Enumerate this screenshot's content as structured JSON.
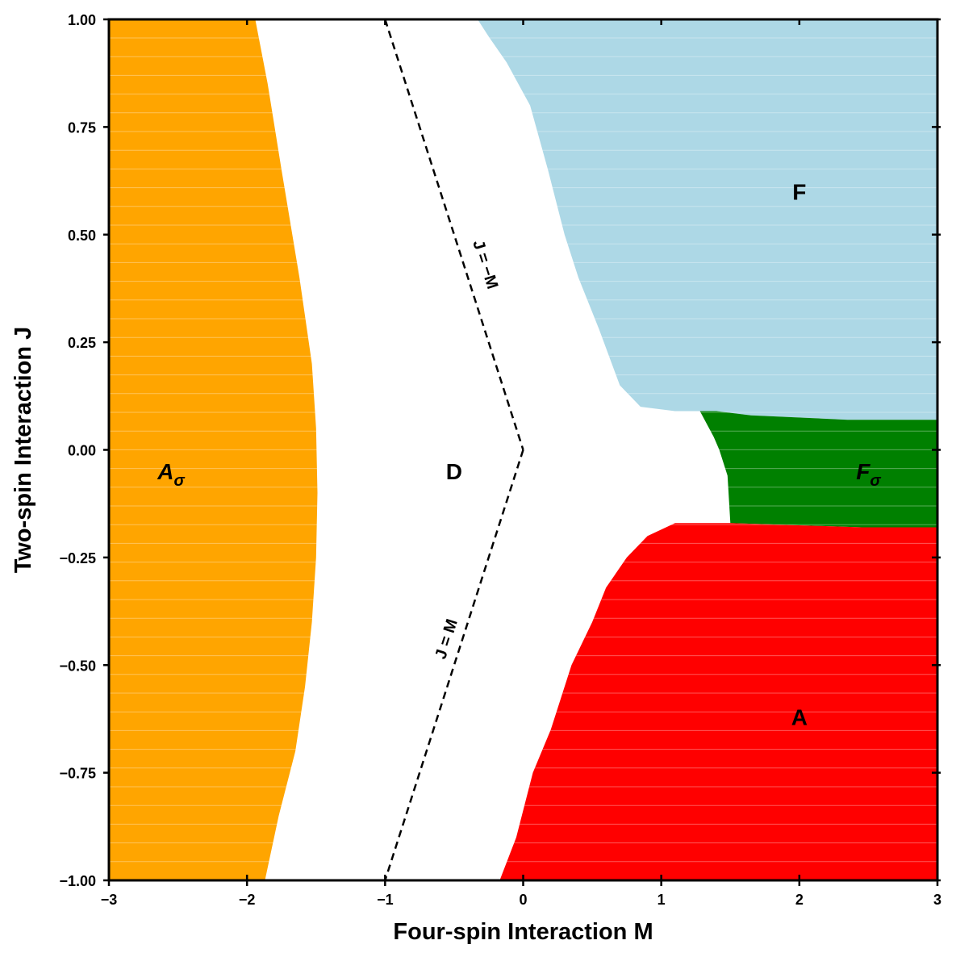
{
  "chart_data": {
    "type": "heatmap",
    "title": "",
    "xlabel": "Four-spin Interaction M",
    "ylabel": "Two-spin Interaction J",
    "xlim": [
      -3,
      3
    ],
    "ylim": [
      -1,
      1
    ],
    "x_ticks": [
      {
        "value": -3,
        "label": "−3"
      },
      {
        "value": -2,
        "label": "−2"
      },
      {
        "value": -1,
        "label": "−1"
      },
      {
        "value": 0,
        "label": "0"
      },
      {
        "value": 1,
        "label": "1"
      },
      {
        "value": 2,
        "label": "2"
      },
      {
        "value": 3,
        "label": "3"
      }
    ],
    "y_ticks": [
      {
        "value": -1.0,
        "label": "−1.00"
      },
      {
        "value": -0.75,
        "label": "−0.75"
      },
      {
        "value": -0.5,
        "label": "−0.50"
      },
      {
        "value": -0.25,
        "label": "−0.25"
      },
      {
        "value": 0.0,
        "label": "0.00"
      },
      {
        "value": 0.25,
        "label": "0.25"
      },
      {
        "value": 0.5,
        "label": "0.50"
      },
      {
        "value": 0.75,
        "label": "0.75"
      },
      {
        "value": 1.0,
        "label": "1.00"
      }
    ],
    "grid": false,
    "background_color": "#ffffff",
    "regions": [
      {
        "label": "A",
        "sub": "σ",
        "italic": true,
        "color": "#ffa500",
        "label_at": [
          -2.55,
          -0.05
        ],
        "polygon": [
          [
            -3,
            1
          ],
          [
            -1.94,
            1
          ],
          [
            -1.85,
            0.85
          ],
          [
            -1.75,
            0.65
          ],
          [
            -1.62,
            0.4
          ],
          [
            -1.53,
            0.2
          ],
          [
            -1.5,
            0.05
          ],
          [
            -1.49,
            -0.1
          ],
          [
            -1.5,
            -0.25
          ],
          [
            -1.53,
            -0.4
          ],
          [
            -1.58,
            -0.55
          ],
          [
            -1.65,
            -0.7
          ],
          [
            -1.77,
            -0.85
          ],
          [
            -1.87,
            -1
          ],
          [
            -3,
            -1
          ]
        ]
      },
      {
        "label": "F",
        "sub": "",
        "italic": false,
        "color": "#add8e6",
        "label_at": [
          2.0,
          0.6
        ],
        "polygon": [
          [
            -0.33,
            1
          ],
          [
            3,
            1
          ],
          [
            3,
            0.07
          ],
          [
            2.35,
            0.07
          ],
          [
            1.65,
            0.08
          ],
          [
            1.4,
            0.09
          ],
          [
            1.28,
            0.09
          ],
          [
            1.1,
            0.09
          ],
          [
            0.85,
            0.1
          ],
          [
            0.7,
            0.15
          ],
          [
            0.55,
            0.28
          ],
          [
            0.4,
            0.4
          ],
          [
            0.3,
            0.5
          ],
          [
            0.18,
            0.65
          ],
          [
            0.05,
            0.8
          ],
          [
            -0.12,
            0.9
          ],
          [
            -0.25,
            0.96
          ]
        ]
      },
      {
        "label": "F",
        "sub": "σ",
        "italic": true,
        "color": "#008000",
        "label_at": [
          2.5,
          -0.05
        ],
        "polygon": [
          [
            1.28,
            0.09
          ],
          [
            1.4,
            0.09
          ],
          [
            1.65,
            0.08
          ],
          [
            2.35,
            0.07
          ],
          [
            3,
            0.07
          ],
          [
            3,
            -0.18
          ],
          [
            2.45,
            -0.18
          ],
          [
            1.5,
            -0.17
          ],
          [
            1.48,
            -0.06
          ],
          [
            1.42,
            0.0
          ],
          [
            1.38,
            0.03
          ]
        ]
      },
      {
        "label": "A",
        "sub": "",
        "italic": false,
        "color": "#ff0000",
        "label_at": [
          2.0,
          -0.62
        ],
        "polygon": [
          [
            1.5,
            -0.17
          ],
          [
            2.45,
            -0.18
          ],
          [
            3,
            -0.18
          ],
          [
            3,
            -1
          ],
          [
            -0.17,
            -1
          ],
          [
            -0.05,
            -0.9
          ],
          [
            0.07,
            -0.75
          ],
          [
            0.2,
            -0.65
          ],
          [
            0.35,
            -0.5
          ],
          [
            0.5,
            -0.4
          ],
          [
            0.6,
            -0.32
          ],
          [
            0.75,
            -0.25
          ],
          [
            0.9,
            -0.2
          ],
          [
            1.1,
            -0.17
          ]
        ]
      },
      {
        "label": "D",
        "sub": "",
        "italic": false,
        "color": "#ffffff",
        "label_at": [
          -0.5,
          -0.05
        ],
        "polygon": []
      }
    ],
    "lines": [
      {
        "label": "J = −M",
        "style": "dashed",
        "points": [
          [
            -1,
            1
          ],
          [
            0,
            0
          ]
        ],
        "label_at": [
          -0.28,
          0.43
        ]
      },
      {
        "label": "J = M",
        "style": "dashed",
        "points": [
          [
            0,
            0
          ],
          [
            -1,
            -1
          ]
        ],
        "label_at": [
          -0.55,
          -0.44
        ]
      }
    ]
  }
}
